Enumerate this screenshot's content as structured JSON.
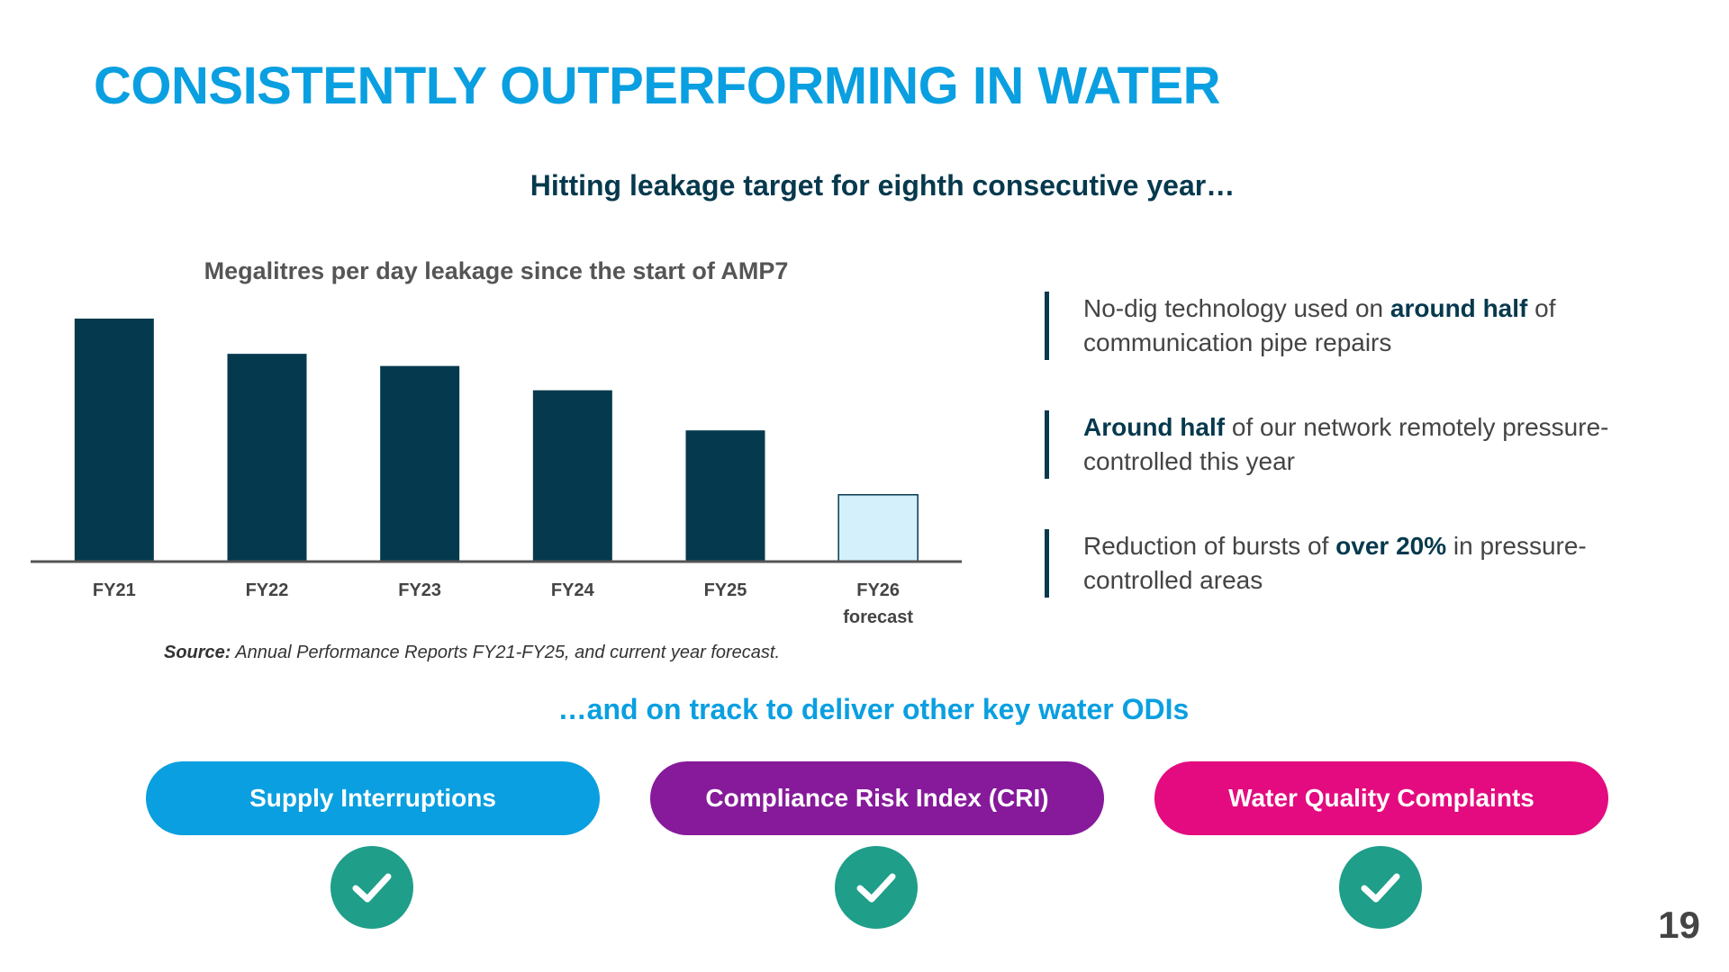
{
  "title": "CONSISTENTLY OUTPERFORMING IN WATER",
  "subtitle": "Hitting leakage target for eighth consecutive year…",
  "chart_data": {
    "type": "bar",
    "title": "Megalitres per day leakage since the start of AMP7",
    "categories": [
      "FY21",
      "FY22",
      "FY23",
      "FY24",
      "FY25",
      "FY26"
    ],
    "category_sublabels": [
      "",
      "",
      "",
      "",
      "",
      "forecast"
    ],
    "values": [
      100,
      85.5,
      80.5,
      70.5,
      54,
      27.5
    ],
    "value_type": [
      "actual",
      "actual",
      "actual",
      "actual",
      "actual",
      "forecast"
    ],
    "colors": {
      "actual": "#053a4e",
      "forecast": "#d4f0fb",
      "forecast_border": "#053a4e",
      "axis": "#555555"
    },
    "ylim": [
      0,
      100
    ],
    "grid": false,
    "legend": "none"
  },
  "source": {
    "label": "Source:",
    "text": "Annual Performance Reports FY21-FY25, and current year forecast."
  },
  "bullets": [
    {
      "pre": "No-dig technology used on ",
      "em": "around half",
      "post": " of communication pipe repairs"
    },
    {
      "pre": "",
      "em": "Around half",
      "post": " of our network remotely pressure-controlled this year"
    },
    {
      "pre": "Reduction of bursts of ",
      "em": "over 20%",
      "post": " in pressure-controlled areas"
    }
  ],
  "odi_heading": "…and on track to deliver other key water ODIs",
  "odis": [
    {
      "label": "Supply Interruptions",
      "color": "#0a9fe0",
      "status_icon": "check-icon"
    },
    {
      "label": "Compliance Risk Index (CRI)",
      "color": "#861a9b",
      "status_icon": "check-icon"
    },
    {
      "label": "Water Quality Complaints",
      "color": "#e30b7f",
      "status_icon": "check-icon"
    }
  ],
  "page_number": "19"
}
